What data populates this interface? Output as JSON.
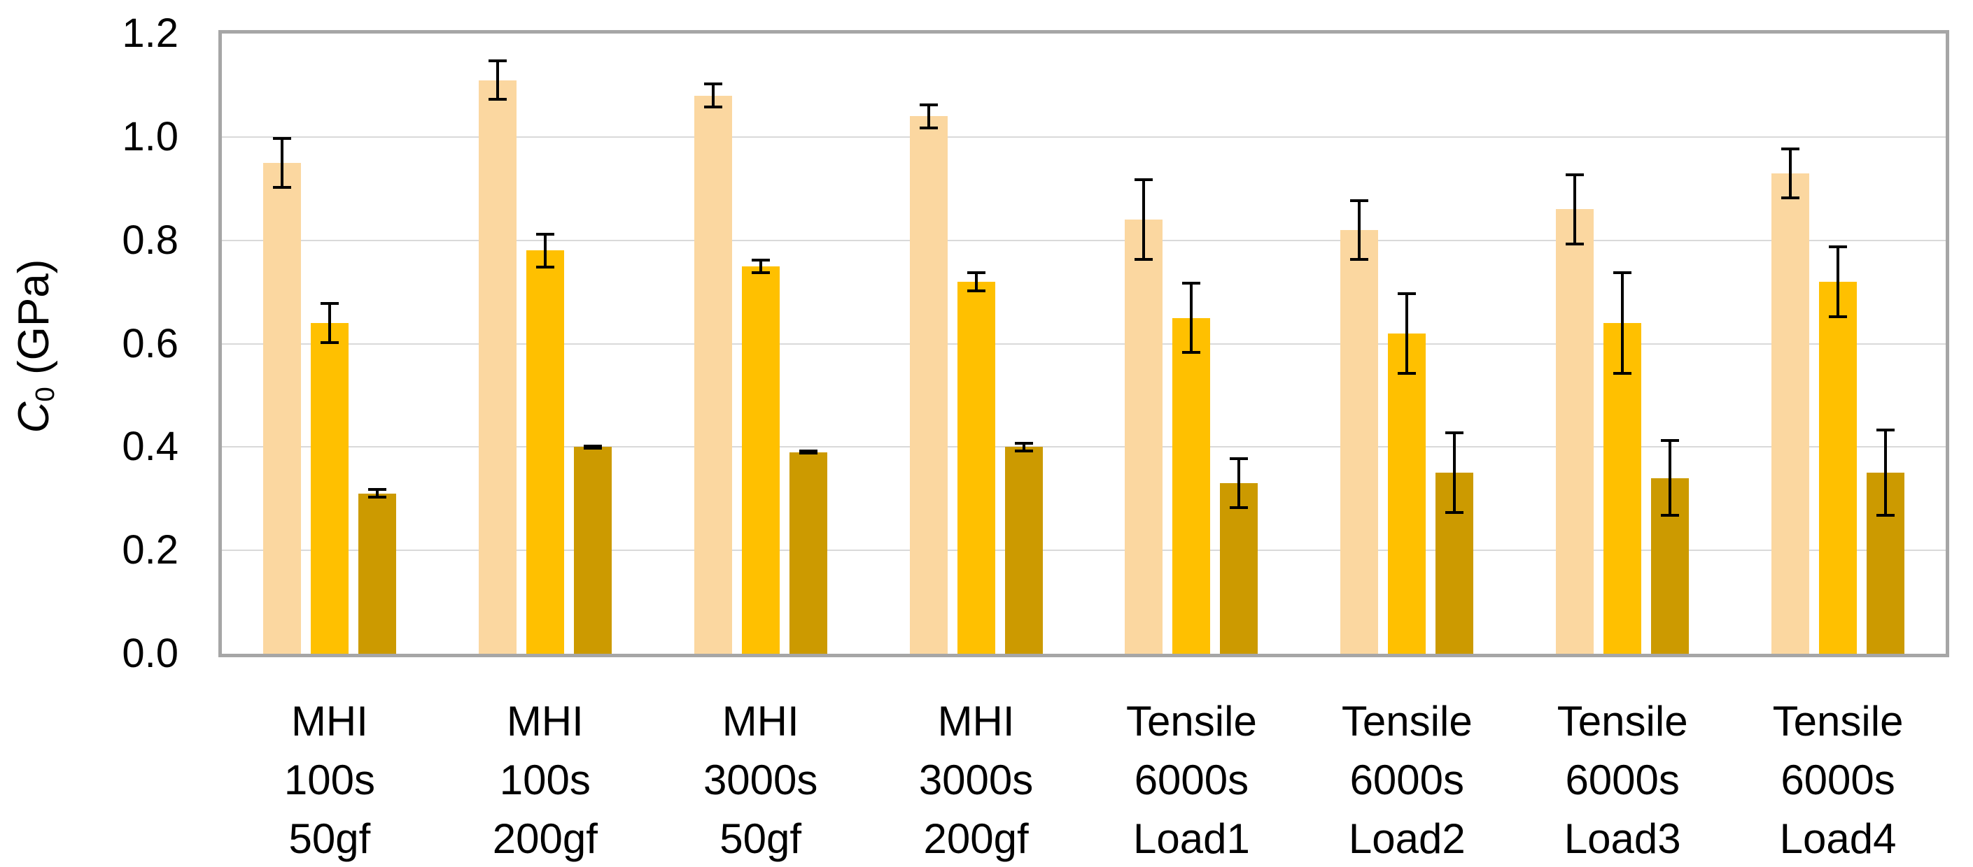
{
  "chart_data": {
    "type": "bar",
    "title": "",
    "xlabel": "",
    "ylabel": {
      "symbol": "C",
      "subscript": "0",
      "unit": " (GPa)"
    },
    "y_axis": {
      "min": 0.0,
      "max": 1.2,
      "tick_step": 0.2,
      "tick_labels": [
        "0.0",
        "0.2",
        "0.4",
        "0.6",
        "0.8",
        "1.0",
        "1.2"
      ]
    },
    "grid": "horizontal",
    "legend_position": "none",
    "categories": [
      [
        "MHI",
        "100s",
        "50gf"
      ],
      [
        "MHI",
        "100s",
        "200gf"
      ],
      [
        "MHI",
        "3000s",
        "50gf"
      ],
      [
        "MHI",
        "3000s",
        "200gf"
      ],
      [
        "Tensile",
        "6000s",
        "Load1"
      ],
      [
        "Tensile",
        "6000s",
        "Load2"
      ],
      [
        "Tensile",
        "6000s",
        "Load3"
      ],
      [
        "Tensile",
        "6000s",
        "Load4"
      ]
    ],
    "series": [
      {
        "name": "series-1-light",
        "color": "#FBD7A0",
        "values": [
          0.95,
          1.11,
          1.08,
          1.04,
          0.84,
          0.82,
          0.86,
          0.93
        ],
        "errors": [
          0.05,
          0.04,
          0.025,
          0.025,
          0.08,
          0.06,
          0.07,
          0.05
        ]
      },
      {
        "name": "series-2-gold",
        "color": "#FFC000",
        "values": [
          0.64,
          0.78,
          0.75,
          0.72,
          0.65,
          0.62,
          0.64,
          0.72
        ],
        "errors": [
          0.04,
          0.035,
          0.015,
          0.02,
          0.07,
          0.08,
          0.1,
          0.07
        ]
      },
      {
        "name": "series-3-dark",
        "color": "#CC9A00",
        "values": [
          0.31,
          0.4,
          0.39,
          0.4,
          0.33,
          0.35,
          0.34,
          0.35
        ],
        "errors": [
          0.01,
          0.005,
          0.005,
          0.01,
          0.05,
          0.08,
          0.075,
          0.085
        ]
      }
    ],
    "error_bar_color": "#000000",
    "colors": {
      "gridline": "#D9D9D9",
      "axis_border": "#A6A6A6",
      "text": "#000000",
      "background": "#FFFFFF"
    }
  }
}
